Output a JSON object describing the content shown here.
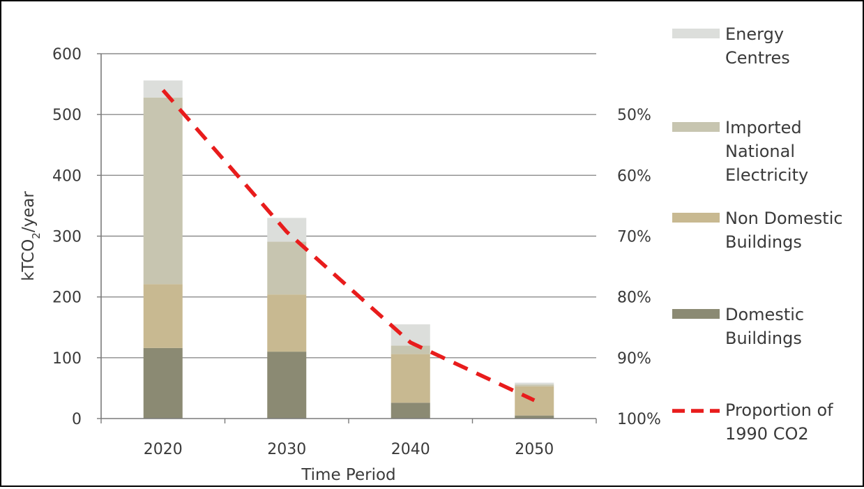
{
  "chart_data": {
    "type": "bar",
    "stacked": true,
    "categories": [
      "2020",
      "2030",
      "2040",
      "2050"
    ],
    "series": [
      {
        "name": "Domestic Buildings",
        "color": "#8b8a73",
        "values": [
          116,
          110,
          26,
          5
        ]
      },
      {
        "name": "Non Domestic Buildings",
        "color": "#c8b991",
        "values": [
          105,
          94,
          80,
          48
        ]
      },
      {
        "name": "Imported National Electricity",
        "color": "#c7c5b0",
        "values": [
          307,
          87,
          14,
          3
        ]
      },
      {
        "name": "Energy Centres",
        "color": "#dcdedb",
        "values": [
          28,
          39,
          35,
          3
        ]
      }
    ],
    "line_series": {
      "name": "Proportion of 1990 CO2",
      "color": "#e81c1c",
      "style": "dashed",
      "axis": "secondary",
      "points": [
        {
          "x": "2020",
          "y": 0.46
        },
        {
          "x": "2030",
          "y": 0.693
        },
        {
          "x": "2040",
          "y": 0.875
        },
        {
          "x": "2050",
          "y": 0.97
        }
      ]
    },
    "xlabel": "Time Period",
    "ylabel_main": "kTCO",
    "ylabel_sub": "2",
    "ylabel_suffix": "/year",
    "ylim": [
      0,
      600
    ],
    "yticks": [
      "0",
      "100",
      "200",
      "300",
      "400",
      "500",
      "600"
    ],
    "y2lim": [
      0.4,
      1.0
    ],
    "y2_inverted": true,
    "y2ticks": [
      "50%",
      "60%",
      "70%",
      "80%",
      "90%",
      "100%"
    ],
    "grid": true,
    "legend_placement": "right",
    "legend_order": [
      "Energy Centres",
      "Imported National Electricity",
      "Non Domestic Buildings",
      "Domestic Buildings",
      "Proportion of 1990 CO2"
    ],
    "legend_lines": {
      "Energy Centres": [
        "Energy",
        "Centres"
      ],
      "Imported National Electricity": [
        "Imported",
        "National",
        "Electricity"
      ],
      "Non Domestic Buildings": [
        "Non Domestic",
        "Buildings"
      ],
      "Domestic Buildings": [
        "Domestic",
        "Buildings"
      ],
      "Proportion of 1990 CO2": [
        "Proportion of",
        "1990 CO2"
      ]
    }
  }
}
